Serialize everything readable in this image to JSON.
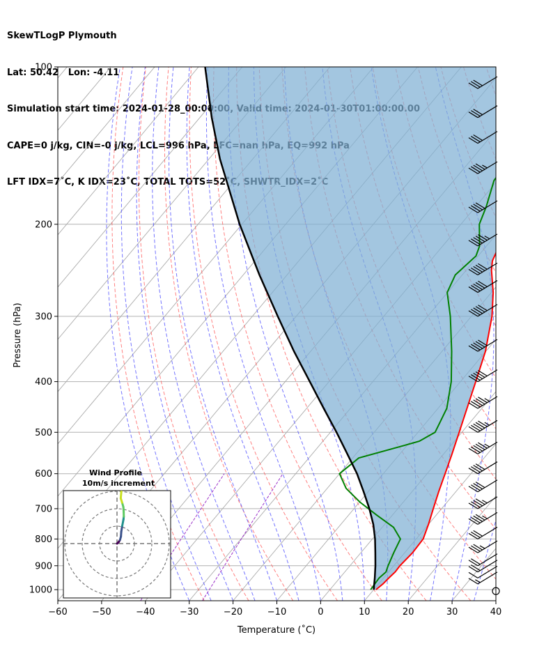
{
  "header": {
    "line1": "SkewTLogP Plymouth",
    "line2": "Lat: 50.42   Lon: -4.11",
    "line3": "Simulation start time: 2024-01-28_00:00:00, Valid time: 2024-01-30T01:00:00.00",
    "line4": "CAPE=0 j/kg, CIN=-0 j/kg, LCL=996 hPa, LFC=nan hPa, EQ=992 hPa",
    "line5": "LFT IDX=7˚C, K IDX=23˚C, TOTAL TOTS=52˚C, SHWTR_IDX=2˚C"
  },
  "chart_data": {
    "type": "line",
    "title": "SkewTLogP Plymouth",
    "xlabel": "Temperature (˚C)",
    "ylabel": "Pressure (hPa)",
    "x_ticks": [
      -60,
      -50,
      -40,
      -30,
      -20,
      -10,
      0,
      10,
      20,
      30,
      40
    ],
    "x_tick_labels": [
      "−60",
      "−50",
      "−40",
      "−30",
      "−20",
      "−10",
      "0",
      "10",
      "20",
      "30",
      "40"
    ],
    "y_ticks": [
      100,
      200,
      300,
      400,
      500,
      600,
      700,
      800,
      900,
      1000
    ],
    "y_tick_labels": [
      "100",
      "200",
      "300",
      "400",
      "500",
      "600",
      "700",
      "800",
      "900",
      "1000"
    ],
    "xlim": [
      -60,
      40
    ],
    "ylim": [
      1050,
      100
    ],
    "y_scale": "log",
    "skew_deg_per_decade": 100,
    "grid": true,
    "colors": {
      "temperature": "#ff0000",
      "dewpoint": "#008000",
      "parcel": "#000000",
      "cape_fill": "#7fb0d4",
      "dry_adiabat": "#ff6060",
      "moist_adiabat": "#5a5aff",
      "mixing_ratio": "#9b30c8",
      "isotherm": "#aaaaaa"
    },
    "series": [
      {
        "name": "",
        "role": "temperature",
        "points": [
          [
            1000,
            10.5
          ],
          [
            975,
            11.0
          ],
          [
            950,
            11.2
          ],
          [
            925,
            11.5
          ],
          [
            900,
            11.4
          ],
          [
            850,
            11.8
          ],
          [
            800,
            11.6
          ],
          [
            750,
            10.0
          ],
          [
            700,
            8.1
          ],
          [
            650,
            6.1
          ],
          [
            600,
            4.1
          ],
          [
            550,
            1.9
          ],
          [
            500,
            -0.6
          ],
          [
            450,
            -3.4
          ],
          [
            400,
            -6.5
          ],
          [
            350,
            -10.1
          ],
          [
            300,
            -15.3
          ],
          [
            270,
            -19.6
          ],
          [
            245,
            -24.2
          ],
          [
            235,
            -25.8
          ],
          [
            215,
            -27.6
          ],
          [
            200,
            -29.9
          ],
          [
            180,
            -35.0
          ],
          [
            160,
            -38.7
          ],
          [
            140,
            -43.8
          ],
          [
            125,
            -48.3
          ],
          [
            115,
            -51.3
          ],
          [
            100,
            -55.3
          ]
        ]
      },
      {
        "name": "",
        "role": "dewpoint",
        "points": [
          [
            1000,
            9.3
          ],
          [
            950,
            9.0
          ],
          [
            925,
            9.4
          ],
          [
            900,
            8.7
          ],
          [
            850,
            7.5
          ],
          [
            800,
            6.4
          ],
          [
            760,
            2.6
          ],
          [
            720,
            -3.6
          ],
          [
            680,
            -9.9
          ],
          [
            640,
            -15.7
          ],
          [
            600,
            -20.0
          ],
          [
            560,
            -18.6
          ],
          [
            530,
            -10.7
          ],
          [
            520,
            -8.0
          ],
          [
            500,
            -6.1
          ],
          [
            450,
            -8.0
          ],
          [
            400,
            -12.1
          ],
          [
            350,
            -17.8
          ],
          [
            300,
            -24.8
          ],
          [
            270,
            -30.1
          ],
          [
            250,
            -31.6
          ],
          [
            230,
            -30.5
          ],
          [
            220,
            -31.6
          ],
          [
            200,
            -35.8
          ],
          [
            185,
            -37.6
          ],
          [
            165,
            -40.8
          ],
          [
            145,
            -41.7
          ],
          [
            130,
            -38.2
          ],
          [
            110,
            -33.8
          ],
          [
            100,
            -31.5
          ]
        ]
      },
      {
        "name": "",
        "role": "parcel",
        "points": [
          [
            1000,
            10.0
          ],
          [
            950,
            8.0
          ],
          [
            900,
            5.8
          ],
          [
            850,
            3.3
          ],
          [
            800,
            0.6
          ],
          [
            750,
            -2.6
          ],
          [
            700,
            -6.5
          ],
          [
            650,
            -11.0
          ],
          [
            600,
            -16.0
          ],
          [
            550,
            -22.0
          ],
          [
            500,
            -28.6
          ],
          [
            450,
            -36.1
          ],
          [
            400,
            -44.4
          ],
          [
            350,
            -53.8
          ],
          [
            300,
            -64.2
          ],
          [
            250,
            -76.3
          ],
          [
            200,
            -90.5
          ],
          [
            150,
            -107.5
          ],
          [
            125,
            -117.3
          ],
          [
            100,
            -128.5
          ]
        ]
      }
    ],
    "wind_barbs_pressure_hpa": [
      1000,
      975,
      950,
      925,
      900,
      850,
      800,
      750,
      700,
      650,
      600,
      550,
      500,
      450,
      400,
      350,
      300,
      270,
      250,
      220,
      190,
      160,
      140,
      125,
      110
    ],
    "wind_barbs_speed_kt": [
      0,
      7,
      12,
      22,
      20,
      25,
      30,
      35,
      35,
      40,
      40,
      45,
      45,
      45,
      50,
      50,
      50,
      50,
      50,
      45,
      40,
      35,
      30,
      30,
      30
    ],
    "inset": {
      "title_line1": "Wind Profile",
      "title_line2": "10m/s increment",
      "colormap": [
        "#440154",
        "#3b528b",
        "#21918c",
        "#5ec962",
        "#c8e020"
      ],
      "hodograph_uv": [
        [
          0,
          0
        ],
        [
          1.1,
          0.8
        ],
        [
          2,
          1.9
        ],
        [
          3.4,
          4.1
        ],
        [
          4.5,
          8.0
        ],
        [
          4.9,
          13.6
        ],
        [
          6.0,
          20.4
        ],
        [
          7.4,
          27.5
        ],
        [
          7.8,
          31.0
        ],
        [
          7.7,
          36.0
        ],
        [
          7.3,
          42.0
        ],
        [
          5.9,
          47.0
        ],
        [
          4.3,
          52.0
        ],
        [
          5.0,
          60.0
        ]
      ]
    }
  }
}
